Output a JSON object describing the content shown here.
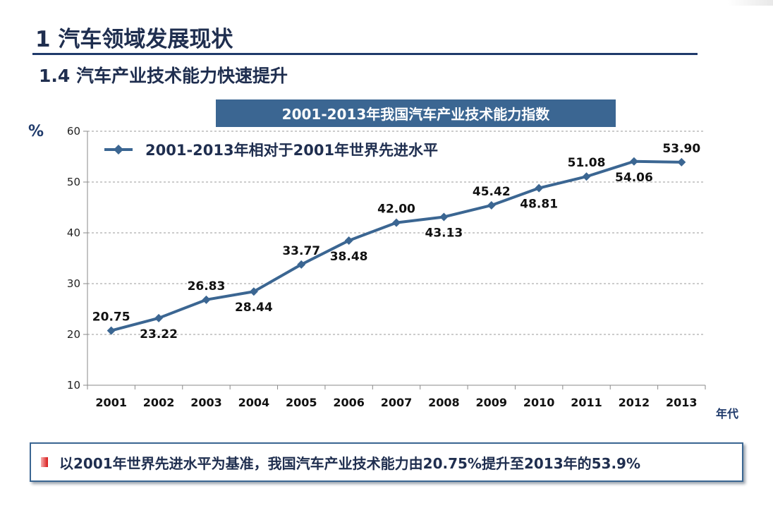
{
  "heading": {
    "main": "1  汽车领域发展现状",
    "sub": "1.4  汽车产业技术能力快速提升"
  },
  "chart_header": "2001-2013年我国汽车产业技术能力指数",
  "chart_data": {
    "type": "line",
    "title": "2001-2013年我国汽车产业技术能力指数",
    "ylabel": "%",
    "xlabel": "年代",
    "ylim": [
      10,
      60
    ],
    "yticks": [
      10,
      20,
      30,
      40,
      50,
      60
    ],
    "grid": true,
    "legend_placement": "top-left",
    "categories": [
      "2001",
      "2002",
      "2003",
      "2004",
      "2005",
      "2006",
      "2007",
      "2008",
      "2009",
      "2010",
      "2011",
      "2012",
      "2013"
    ],
    "series": [
      {
        "name": "2001-2013年相对于2001年世界先进水平",
        "color": "#3b6692",
        "values": [
          20.75,
          23.22,
          26.83,
          28.44,
          33.77,
          38.48,
          42.0,
          43.13,
          45.42,
          48.81,
          51.08,
          54.06,
          53.9
        ],
        "labels": [
          "20.75",
          "23.22",
          "26.83",
          "28.44",
          "33.77",
          "38.48",
          "42.00",
          "43.13",
          "45.42",
          "48.81",
          "51.08",
          "54.06",
          "53.90"
        ],
        "label_side": [
          "above",
          "below",
          "above",
          "below",
          "above",
          "below",
          "above",
          "below",
          "above",
          "below",
          "above",
          "below",
          "above"
        ]
      }
    ]
  },
  "note": {
    "text": "以2001年世界先进水平为基准，我国汽车产业技术能力由20.75%提升至2013年的53.9%"
  }
}
